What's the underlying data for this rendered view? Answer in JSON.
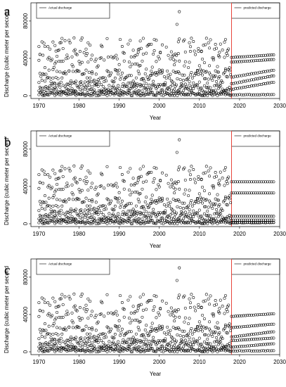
{
  "colors": {
    "axis": "#000000",
    "point": "#000000",
    "divider": "#e8443a",
    "background": "#ffffff"
  },
  "chart_data": [
    {
      "type": "scatter",
      "panel_label": "a",
      "xlabel": "Year",
      "ylabel": "Discharge (cubic meter per second",
      "xlim": [
        1968,
        2030
      ],
      "ylim": [
        0,
        95000
      ],
      "xticks": [
        1970,
        1980,
        1990,
        2000,
        2010,
        2020,
        2030
      ],
      "yticks": [
        0,
        40000,
        80000
      ],
      "divider_x": 2018,
      "legend_left": "Actual discharge",
      "legend_right": "predicted discharge",
      "peak": {
        "x": 2005,
        "y": 90000
      },
      "actual_bands": [
        {
          "lo": 0,
          "hi": 4000
        },
        {
          "lo": 4000,
          "hi": 12000
        },
        {
          "lo": 12000,
          "hi": 28000
        },
        {
          "lo": 25000,
          "hi": 50000
        },
        {
          "lo": 40000,
          "hi": 62000
        }
      ],
      "predicted_bands": [
        {
          "from": 20000,
          "to": 28000
        },
        {
          "from": 7000,
          "to": 15000
        },
        {
          "from": 13000,
          "to": 22000
        },
        {
          "from": 36000,
          "to": 39000
        },
        {
          "from": 41000,
          "to": 44000
        }
      ]
    },
    {
      "type": "scatter",
      "panel_label": "b",
      "xlabel": "Year",
      "ylabel": "Discharge (cubic meter per second",
      "xlim": [
        1968,
        2030
      ],
      "ylim": [
        0,
        95000
      ],
      "xticks": [
        1970,
        1980,
        1990,
        2000,
        2010,
        2020,
        2030
      ],
      "yticks": [
        0,
        40000,
        80000
      ],
      "divider_x": 2018,
      "legend_left": "Actual discharge",
      "legend_right": "predicted discharge",
      "peak": {
        "x": 2005,
        "y": 90000
      },
      "actual_bands": [
        {
          "lo": 0,
          "hi": 4000
        },
        {
          "lo": 4000,
          "hi": 12000
        },
        {
          "lo": 12000,
          "hi": 28000
        },
        {
          "lo": 25000,
          "hi": 50000
        },
        {
          "lo": 40000,
          "hi": 62000
        }
      ],
      "predicted_bands": [
        {
          "from": 45000,
          "to": 45000
        },
        {
          "from": 33000,
          "to": 33000
        },
        {
          "from": 8000,
          "to": 8000
        },
        {
          "from": 4000,
          "to": 4000
        },
        {
          "from": 1500,
          "to": 1500
        }
      ]
    },
    {
      "type": "scatter",
      "panel_label": "c",
      "xlabel": "Year",
      "ylabel": "Discharge (cubic meter per second",
      "xlim": [
        1968,
        2030
      ],
      "ylim": [
        0,
        95000
      ],
      "xticks": [
        1970,
        1980,
        1990,
        2000,
        2010,
        2020,
        2030
      ],
      "yticks": [
        0,
        40000,
        80000
      ],
      "divider_x": 2018,
      "legend_left": "Actual discharge",
      "legend_right": "predicted discharge",
      "peak": {
        "x": 2005,
        "y": 90000
      },
      "actual_bands": [
        {
          "lo": 0,
          "hi": 4000
        },
        {
          "lo": 4000,
          "hi": 12000
        },
        {
          "lo": 12000,
          "hi": 28000
        },
        {
          "lo": 25000,
          "hi": 50000
        },
        {
          "lo": 40000,
          "hi": 62000
        }
      ],
      "predicted_bands": [
        {
          "from": 16000,
          "to": 22000
        },
        {
          "from": 5000,
          "to": 9000
        },
        {
          "from": 26000,
          "to": 30000
        },
        {
          "from": 38000,
          "to": 41000
        },
        {
          "from": 12000,
          "to": 15000
        }
      ]
    }
  ]
}
